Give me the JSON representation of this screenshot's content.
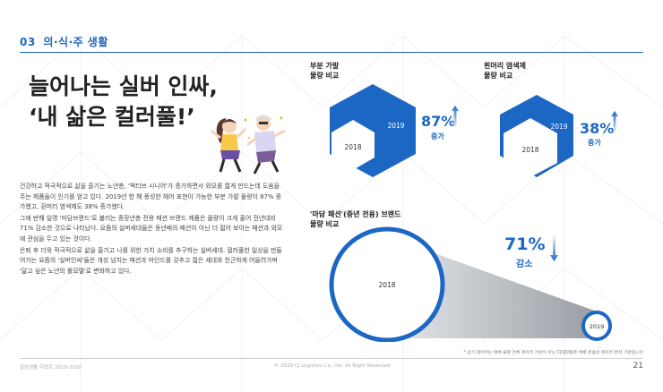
{
  "section": {
    "number": "03",
    "label": "의∙식∙주 생활"
  },
  "headline": {
    "line1": "늘어나는 실버 인싸,",
    "line2": "‘내 삶은 컬러풀!’"
  },
  "illustration": {
    "icon": "dancing-seniors"
  },
  "body": {
    "p1": "건강하고 적극적으로 삶을 즐기는 노년층, '액티브 시니어'가 증가하면서 외모를 젊게 만드는데 도움을 주는 제품들이 인기를 얻고 있다. 2019년 한 해 풍성한 헤어 표현이 가능한 부분 가발 물량이 87% 증가했고, 흰머리 염색제도 38% 증가했다.",
    "p2": "그에 반해 일명 '마담브랜드'로 불리는 중장년층 전용 패션 브랜드 제품은 물량이 크게 줄어 전년대비 71% 감소한 것으로 나타났다. 요즘의 실버세대들은 동년배의 패션이 아닌 더 젊어 보이는 패션과 외모에 관심을 두고 있는 것이다.",
    "p3": "은퇴 후 더욱 적극적으로 삶을 즐기고 나를 위한 가치 소비를 추구하는 실버세대. 컬러풀한 일상을 만들어가는 요즘의 '실버인싸'들은 개성 넘치는 패션과 마인드를 갖추고 젊은 세대와 친근하게 어울려가며 '닮고 싶은 노년의 롤모델'로 변화하고 있다."
  },
  "colors": {
    "accent": "#1d67c4",
    "accent_light": "#3d85de",
    "grey": "#cfd2d6"
  },
  "panels": [
    {
      "title_line1": "부분 가발",
      "title_line2": "물량 비교",
      "year_old": "2018",
      "year_new": "2019",
      "percent": "87%",
      "change": "증가"
    },
    {
      "title_line1": "흰머리 염색제",
      "title_line2": "물량 비교",
      "year_old": "2018",
      "year_new": "2019",
      "percent": "38%",
      "change": "증가"
    },
    {
      "title_line1": "'마담 패션'(중년 전용) 브랜드",
      "title_line2": "물량 비교",
      "year_old": "2018",
      "year_new": "2019",
      "percent": "71%",
      "change": "감소"
    }
  ],
  "chart_data": [
    {
      "type": "area",
      "title": "부분 가발 물량 비교",
      "categories": [
        "2018",
        "2019"
      ],
      "change_percent": 87,
      "direction": "increase"
    },
    {
      "type": "area",
      "title": "흰머리 염색제 물량 비교",
      "categories": [
        "2018",
        "2019"
      ],
      "change_percent": 38,
      "direction": "increase"
    },
    {
      "type": "area",
      "title": "'마담 패션'(중년 전용) 브랜드 물량 비교",
      "categories": [
        "2018",
        "2019"
      ],
      "change_percent": 71,
      "direction": "decrease"
    }
  ],
  "footnote": "* 상기 데이터는 택배 물량 전체 데이터 기반이 아닌 CJ대한통운 택배 운송장 데이터 분석 기반입니다",
  "footer": {
    "left": "일상생활 리포트 2019-2020",
    "center": "© 2020 CJ Logistics Co., ltd. All Right Reserved",
    "page": "21"
  }
}
